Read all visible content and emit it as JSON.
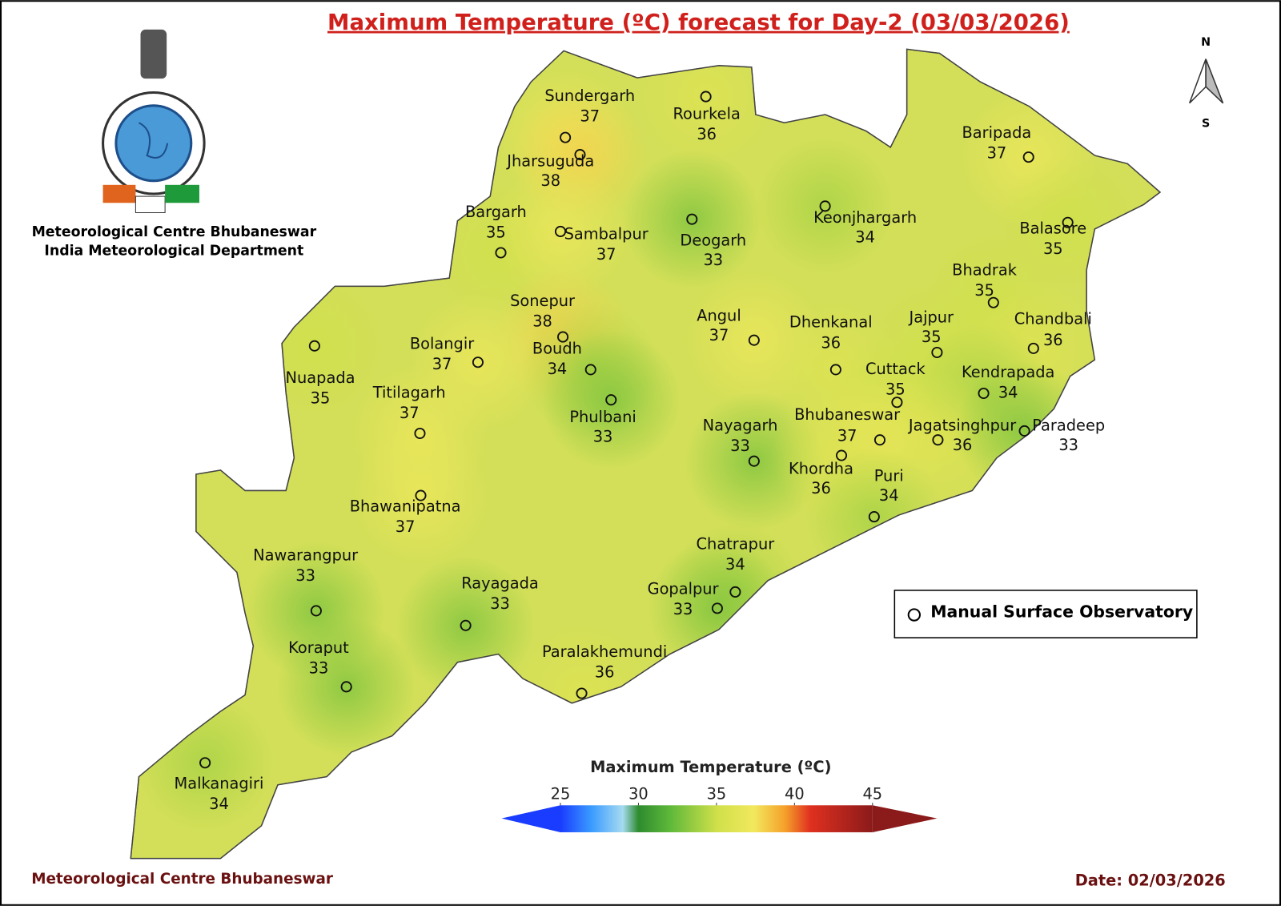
{
  "header": {
    "title": "Maximum Temperature (ºC) forecast for Day-2 (03/03/2026)",
    "organization": [
      "Meteorological Centre Bhubaneswar",
      "India Meteorological Department"
    ]
  },
  "compass": {
    "north": "N",
    "south": "S"
  },
  "stations": [
    {
      "name": "Sundergarh",
      "temp": 37
    },
    {
      "name": "Rourkela",
      "temp": 36
    },
    {
      "name": "Jharsuguda",
      "temp": 38
    },
    {
      "name": "Baripada",
      "temp": 37
    },
    {
      "name": "Bargarh",
      "temp": 35
    },
    {
      "name": "Sambalpur",
      "temp": 37
    },
    {
      "name": "Deogarh",
      "temp": 33
    },
    {
      "name": "Keonjhargarh",
      "temp": 34
    },
    {
      "name": "Balasore",
      "temp": 35
    },
    {
      "name": "Bhadrak",
      "temp": 35
    },
    {
      "name": "Sonepur",
      "temp": 38
    },
    {
      "name": "Angul",
      "temp": 37
    },
    {
      "name": "Dhenkanal",
      "temp": 36
    },
    {
      "name": "Jajpur",
      "temp": 35
    },
    {
      "name": "Chandbali",
      "temp": 36
    },
    {
      "name": "Bolangir",
      "temp": 37
    },
    {
      "name": "Nuapada",
      "temp": 35
    },
    {
      "name": "Boudh",
      "temp": 34
    },
    {
      "name": "Cuttack",
      "temp": 35
    },
    {
      "name": "Kendrapada",
      "temp": 34
    },
    {
      "name": "Titilagarh",
      "temp": 37
    },
    {
      "name": "Phulbani",
      "temp": 33
    },
    {
      "name": "Nayagarh",
      "temp": 33
    },
    {
      "name": "Bhubaneswar",
      "temp": 37
    },
    {
      "name": "Jagatsinghpur",
      "temp": 36
    },
    {
      "name": "Paradeep",
      "temp": 33
    },
    {
      "name": "Khordha",
      "temp": 36
    },
    {
      "name": "Puri",
      "temp": 34
    },
    {
      "name": "Bhawanipatna",
      "temp": 37
    },
    {
      "name": "Chatrapur",
      "temp": 34
    },
    {
      "name": "Nawarangpur",
      "temp": 33
    },
    {
      "name": "Rayagada",
      "temp": 33
    },
    {
      "name": "Gopalpur",
      "temp": 33
    },
    {
      "name": "Paralakhemundi",
      "temp": 36
    },
    {
      "name": "Koraput",
      "temp": 33
    },
    {
      "name": "Malkanagiri",
      "temp": 34
    }
  ],
  "legend": {
    "marker_label": "Manual Surface Observatory"
  },
  "colorbar": {
    "title": "Maximum Temperature (ºC)",
    "ticks": [
      25,
      30,
      35,
      40,
      45
    ]
  },
  "footer": {
    "left": "Meteorological Centre Bhubaneswar",
    "date": "Date: 02/03/2026"
  }
}
